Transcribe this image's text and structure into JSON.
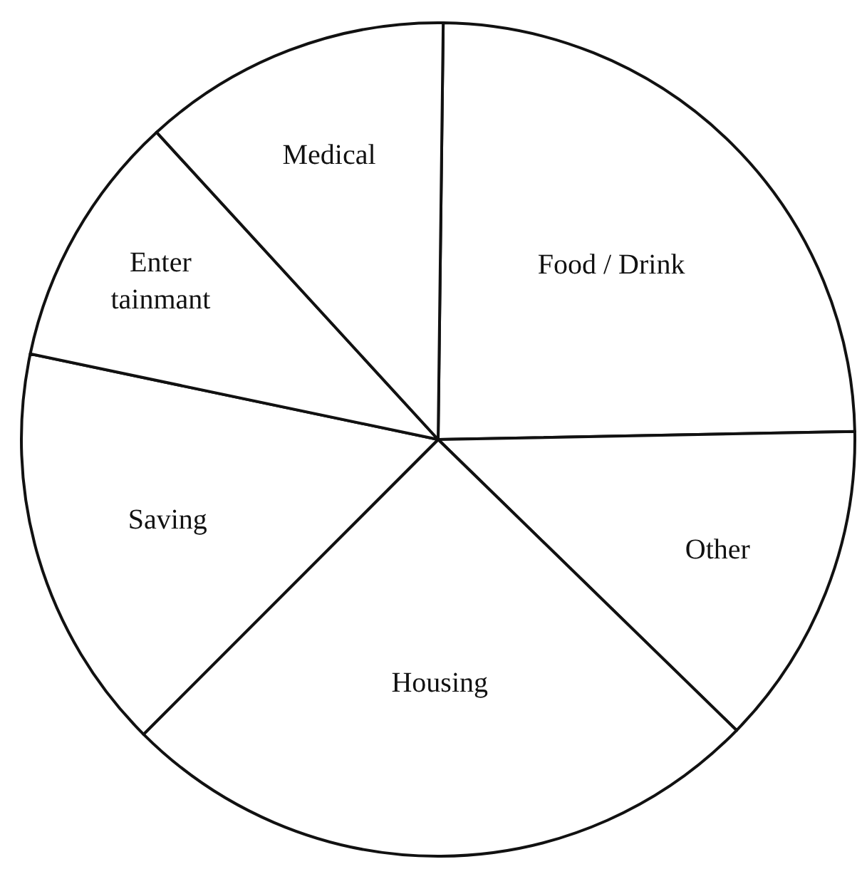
{
  "chart_data": {
    "type": "pie",
    "categories": [
      "Food / Drink",
      "Other",
      "Housing",
      "Saving",
      "Enter\ntainmant",
      "Medical"
    ],
    "values": [
      24.5,
      12.6,
      25.2,
      15.8,
      9.9,
      12.0
    ],
    "colors": [
      "#ffffff",
      "#ffffff",
      "#ffffff",
      "#ffffff",
      "#ffffff",
      "#ffffff"
    ],
    "legend": false
  }
}
